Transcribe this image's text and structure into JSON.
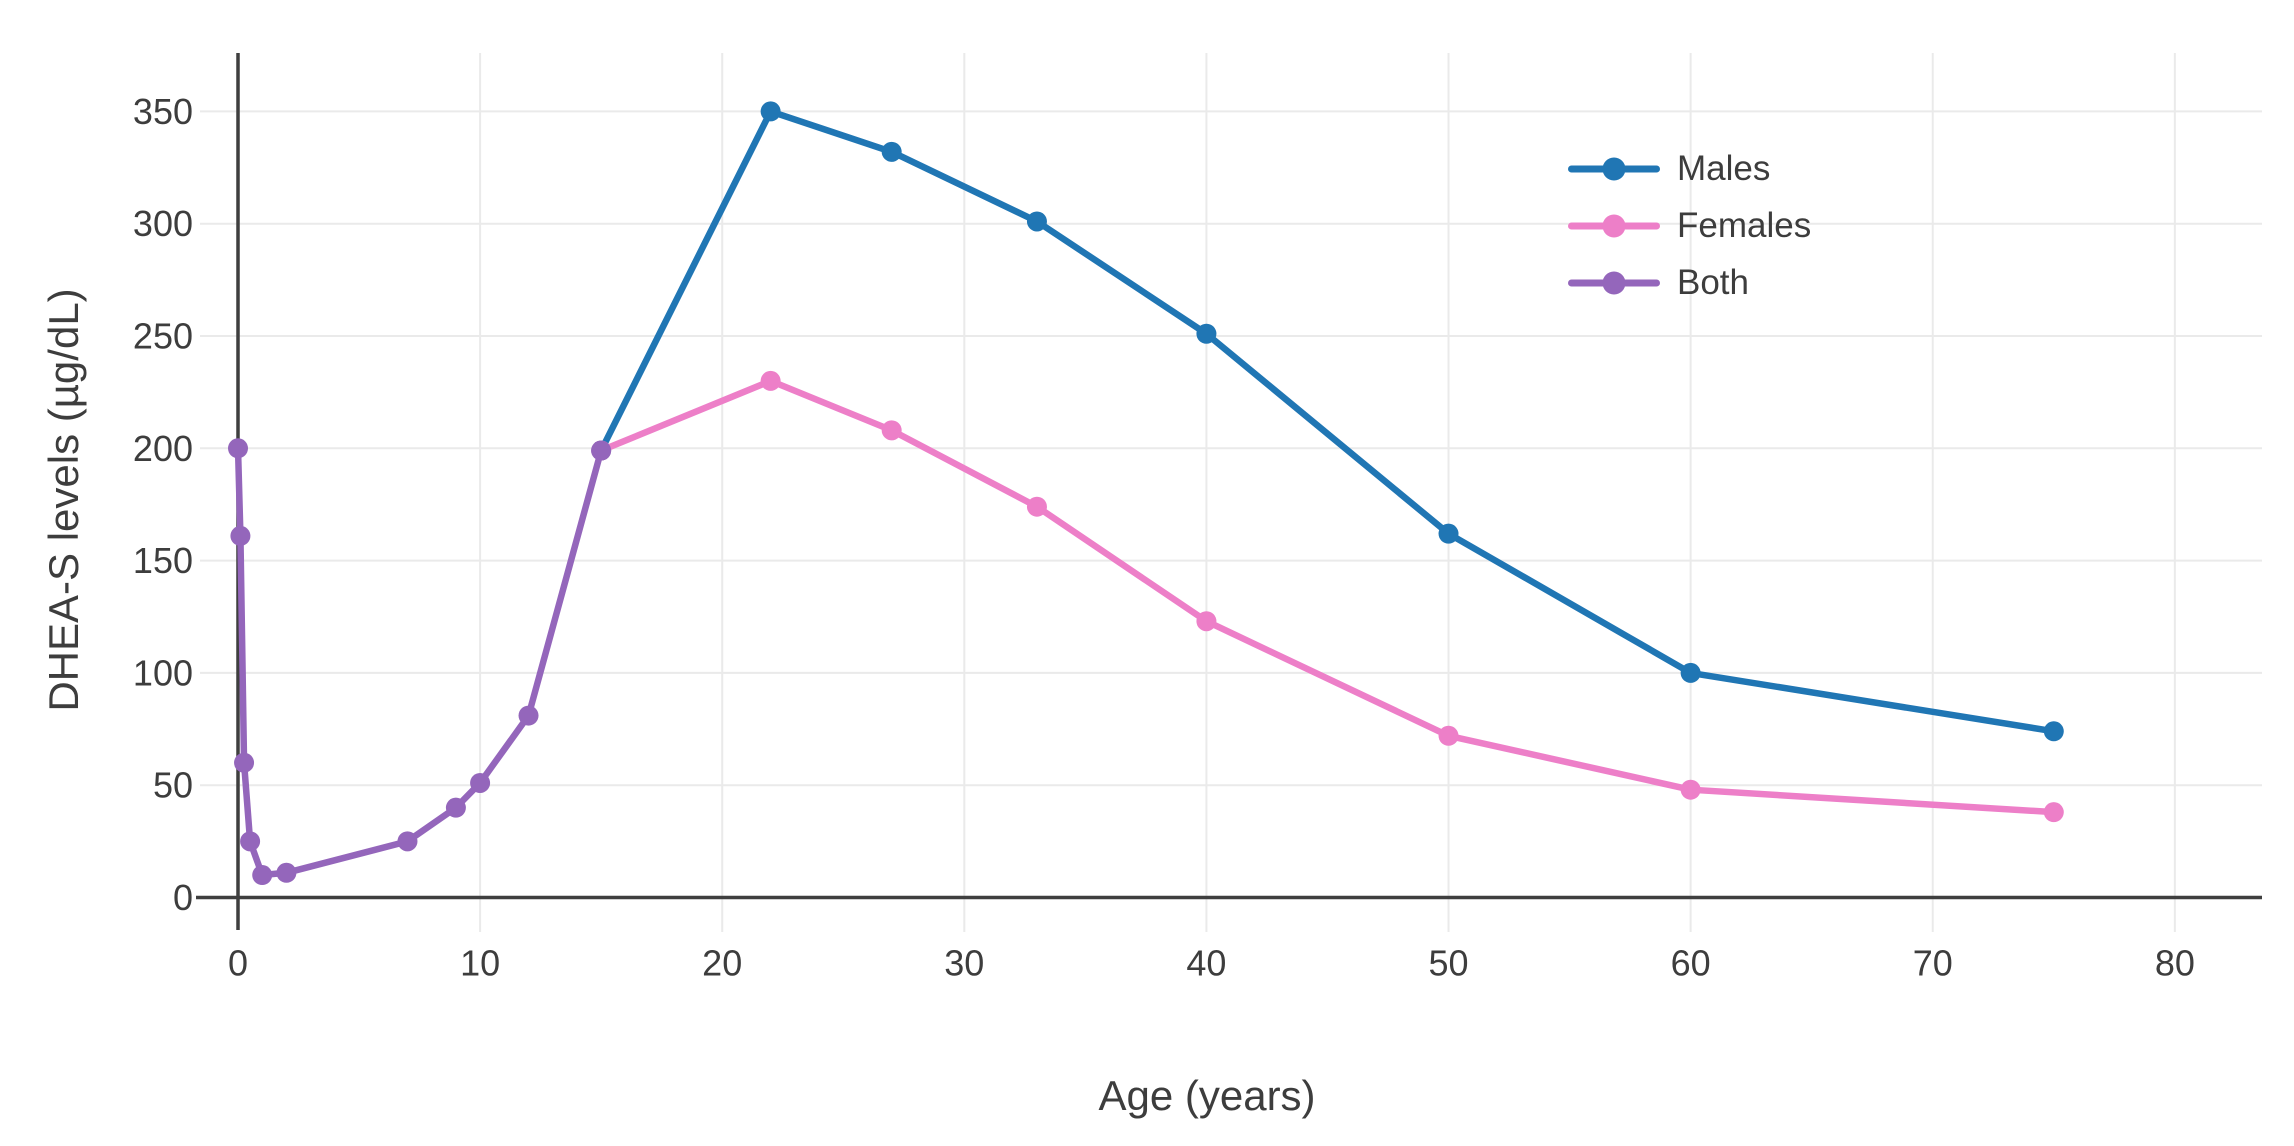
{
  "figure": {
    "background": "#ffffff",
    "axis_color": "#3f3f3f",
    "grid_color": "#eaeaea",
    "text_color": "#3d3d3d"
  },
  "chart_data": {
    "type": "line",
    "title": "",
    "xlabel": "Age (years)",
    "ylabel": "DHEA-S levels (µg/dL)",
    "xlim": [
      0,
      83.6
    ],
    "ylim": [
      0,
      376
    ],
    "x_ticks": [
      0,
      10,
      20,
      30,
      40,
      50,
      60,
      70,
      80
    ],
    "y_ticks": [
      0,
      50,
      100,
      150,
      200,
      250,
      300,
      350
    ],
    "grid": true,
    "legend_position": "top-right",
    "legend_entries": [
      "Males",
      "Females",
      "Both"
    ],
    "series": [
      {
        "name": "Males",
        "color": "#2076b4",
        "marker": "circle",
        "x": [
          15,
          22,
          27,
          33,
          40,
          50,
          60,
          75
        ],
        "y": [
          199,
          350,
          332,
          301,
          251,
          162,
          100,
          74
        ]
      },
      {
        "name": "Females",
        "color": "#ed7fc8",
        "marker": "circle",
        "x": [
          15,
          22,
          27,
          33,
          40,
          50,
          60,
          75
        ],
        "y": [
          199,
          230,
          208,
          174,
          123,
          72,
          48,
          38
        ]
      },
      {
        "name": "Both",
        "color": "#9466bb",
        "marker": "circle",
        "x": [
          0,
          0.1,
          0.25,
          0.5,
          1,
          2,
          7,
          9,
          10,
          12,
          15
        ],
        "y": [
          200,
          161,
          60,
          25,
          10,
          11,
          25,
          40,
          51,
          81,
          199
        ]
      }
    ]
  }
}
